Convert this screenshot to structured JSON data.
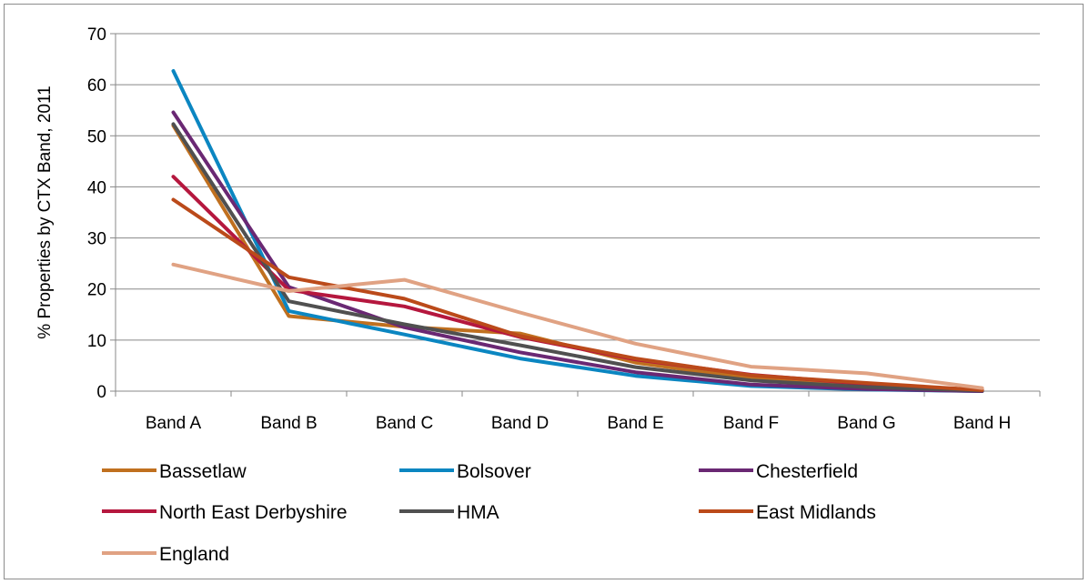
{
  "chart_data": {
    "type": "line",
    "title": "",
    "xlabel": "",
    "ylabel": "% Properties by CTX Band, 2011",
    "ylim": [
      0,
      70
    ],
    "yticks": [
      0,
      10,
      20,
      30,
      40,
      50,
      60,
      70
    ],
    "grid": "horizontal",
    "legend_position": "bottom",
    "categories": [
      "Band A",
      "Band B",
      "Band C",
      "Band D",
      "Band E",
      "Band F",
      "Band G",
      "Band H"
    ],
    "series": [
      {
        "name": "Bassetlaw",
        "color": "#c0701f",
        "values": [
          52.0,
          14.7,
          12.6,
          11.3,
          5.6,
          2.5,
          1.1,
          0.2
        ]
      },
      {
        "name": "Bolsover",
        "color": "#0b86c1",
        "values": [
          62.7,
          15.7,
          11.1,
          6.4,
          3.0,
          1.0,
          0.3,
          0.0
        ]
      },
      {
        "name": "Chesterfield",
        "color": "#6a2873",
        "values": [
          54.6,
          20.4,
          12.5,
          7.6,
          3.7,
          1.3,
          0.4,
          0.0
        ]
      },
      {
        "name": "North East Derbyshire",
        "color": "#b5173e",
        "values": [
          42.0,
          19.8,
          16.6,
          10.6,
          6.2,
          3.2,
          1.4,
          0.2
        ]
      },
      {
        "name": "HMA",
        "color": "#505050",
        "values": [
          52.3,
          17.6,
          13.1,
          9.0,
          4.7,
          2.1,
          0.8,
          0.1
        ]
      },
      {
        "name": "East Midlands",
        "color": "#bb4a1a",
        "values": [
          37.5,
          22.3,
          18.1,
          10.8,
          6.4,
          3.1,
          1.6,
          0.2
        ]
      },
      {
        "name": "England",
        "color": "#e0a283",
        "values": [
          24.8,
          19.6,
          21.8,
          15.4,
          9.3,
          4.8,
          3.5,
          0.6
        ]
      }
    ]
  }
}
